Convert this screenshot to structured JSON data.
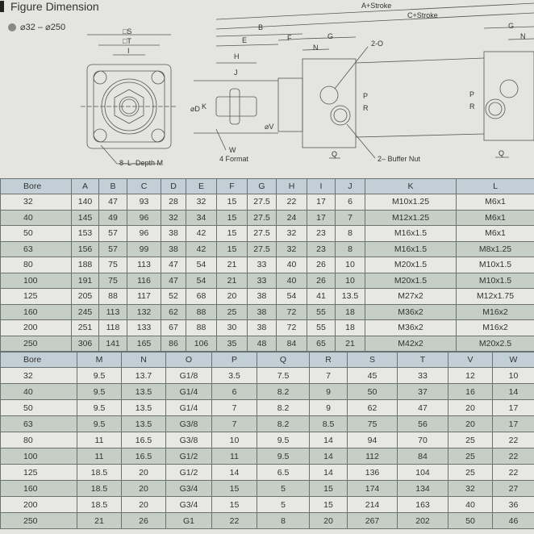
{
  "header": {
    "title": "Figure Dimension",
    "range": "⌀32 – ⌀250"
  },
  "figure": {
    "labels": {
      "S": "□S",
      "T": "□T",
      "I": "I",
      "depth": "8–L–Depth M",
      "B": "B",
      "E": "E",
      "H": "H",
      "J": "J",
      "D": "⌀D",
      "K": "K",
      "V": "⌀V",
      "W": "W",
      "format": "4 Format",
      "F": "F",
      "G": "G",
      "N": "N",
      "O": "2-O",
      "A_stroke": "A+Stroke",
      "C_stroke": "C+Stroke",
      "G2": "G",
      "N2": "N",
      "R": "R",
      "P": "P",
      "Q": "Q",
      "Q2": "Q",
      "buffer": "2– Buffer Nut"
    }
  },
  "table1": {
    "headers": [
      "Bore",
      "A",
      "B",
      "C",
      "D",
      "E",
      "F",
      "G",
      "H",
      "I",
      "J",
      "K",
      "L"
    ],
    "rows": [
      [
        "32",
        "140",
        "47",
        "93",
        "28",
        "32",
        "15",
        "27.5",
        "22",
        "17",
        "6",
        "M10x1.25",
        "M6x1"
      ],
      [
        "40",
        "145",
        "49",
        "96",
        "32",
        "34",
        "15",
        "27.5",
        "24",
        "17",
        "7",
        "M12x1.25",
        "M6x1"
      ],
      [
        "50",
        "153",
        "57",
        "96",
        "38",
        "42",
        "15",
        "27.5",
        "32",
        "23",
        "8",
        "M16x1.5",
        "M6x1"
      ],
      [
        "63",
        "156",
        "57",
        "99",
        "38",
        "42",
        "15",
        "27.5",
        "32",
        "23",
        "8",
        "M16x1.5",
        "M8x1.25"
      ],
      [
        "80",
        "188",
        "75",
        "113",
        "47",
        "54",
        "21",
        "33",
        "40",
        "26",
        "10",
        "M20x1.5",
        "M10x1.5"
      ],
      [
        "100",
        "191",
        "75",
        "116",
        "47",
        "54",
        "21",
        "33",
        "40",
        "26",
        "10",
        "M20x1.5",
        "M10x1.5"
      ],
      [
        "125",
        "205",
        "88",
        "117",
        "52",
        "68",
        "20",
        "38",
        "54",
        "41",
        "13.5",
        "M27x2",
        "M12x1.75"
      ],
      [
        "160",
        "245",
        "113",
        "132",
        "62",
        "88",
        "25",
        "38",
        "72",
        "55",
        "18",
        "M36x2",
        "M16x2"
      ],
      [
        "200",
        "251",
        "118",
        "133",
        "67",
        "88",
        "30",
        "38",
        "72",
        "55",
        "18",
        "M36x2",
        "M16x2"
      ],
      [
        "250",
        "306",
        "141",
        "165",
        "86",
        "106",
        "35",
        "48",
        "84",
        "65",
        "21",
        "M42x2",
        "M20x2.5"
      ]
    ]
  },
  "table2": {
    "headers": [
      "Bore",
      "M",
      "N",
      "O",
      "P",
      "Q",
      "R",
      "S",
      "T",
      "V",
      "W"
    ],
    "rows": [
      [
        "32",
        "9.5",
        "13.7",
        "G1/8",
        "3.5",
        "7.5",
        "7",
        "45",
        "33",
        "12",
        "10"
      ],
      [
        "40",
        "9.5",
        "13.5",
        "G1/4",
        "6",
        "8.2",
        "9",
        "50",
        "37",
        "16",
        "14"
      ],
      [
        "50",
        "9.5",
        "13.5",
        "G1/4",
        "7",
        "8.2",
        "9",
        "62",
        "47",
        "20",
        "17"
      ],
      [
        "63",
        "9.5",
        "13.5",
        "G3/8",
        "7",
        "8.2",
        "8.5",
        "75",
        "56",
        "20",
        "17"
      ],
      [
        "80",
        "11",
        "16.5",
        "G3/8",
        "10",
        "9.5",
        "14",
        "94",
        "70",
        "25",
        "22"
      ],
      [
        "100",
        "11",
        "16.5",
        "G1/2",
        "11",
        "9.5",
        "14",
        "112",
        "84",
        "25",
        "22"
      ],
      [
        "125",
        "18.5",
        "20",
        "G1/2",
        "14",
        "6.5",
        "14",
        "136",
        "104",
        "25",
        "22"
      ],
      [
        "160",
        "18.5",
        "20",
        "G3/4",
        "15",
        "5",
        "15",
        "174",
        "134",
        "32",
        "27"
      ],
      [
        "200",
        "18.5",
        "20",
        "G3/4",
        "15",
        "5",
        "15",
        "214",
        "163",
        "40",
        "36"
      ],
      [
        "250",
        "21",
        "26",
        "G1",
        "22",
        "8",
        "20",
        "267",
        "202",
        "50",
        "46"
      ]
    ]
  }
}
